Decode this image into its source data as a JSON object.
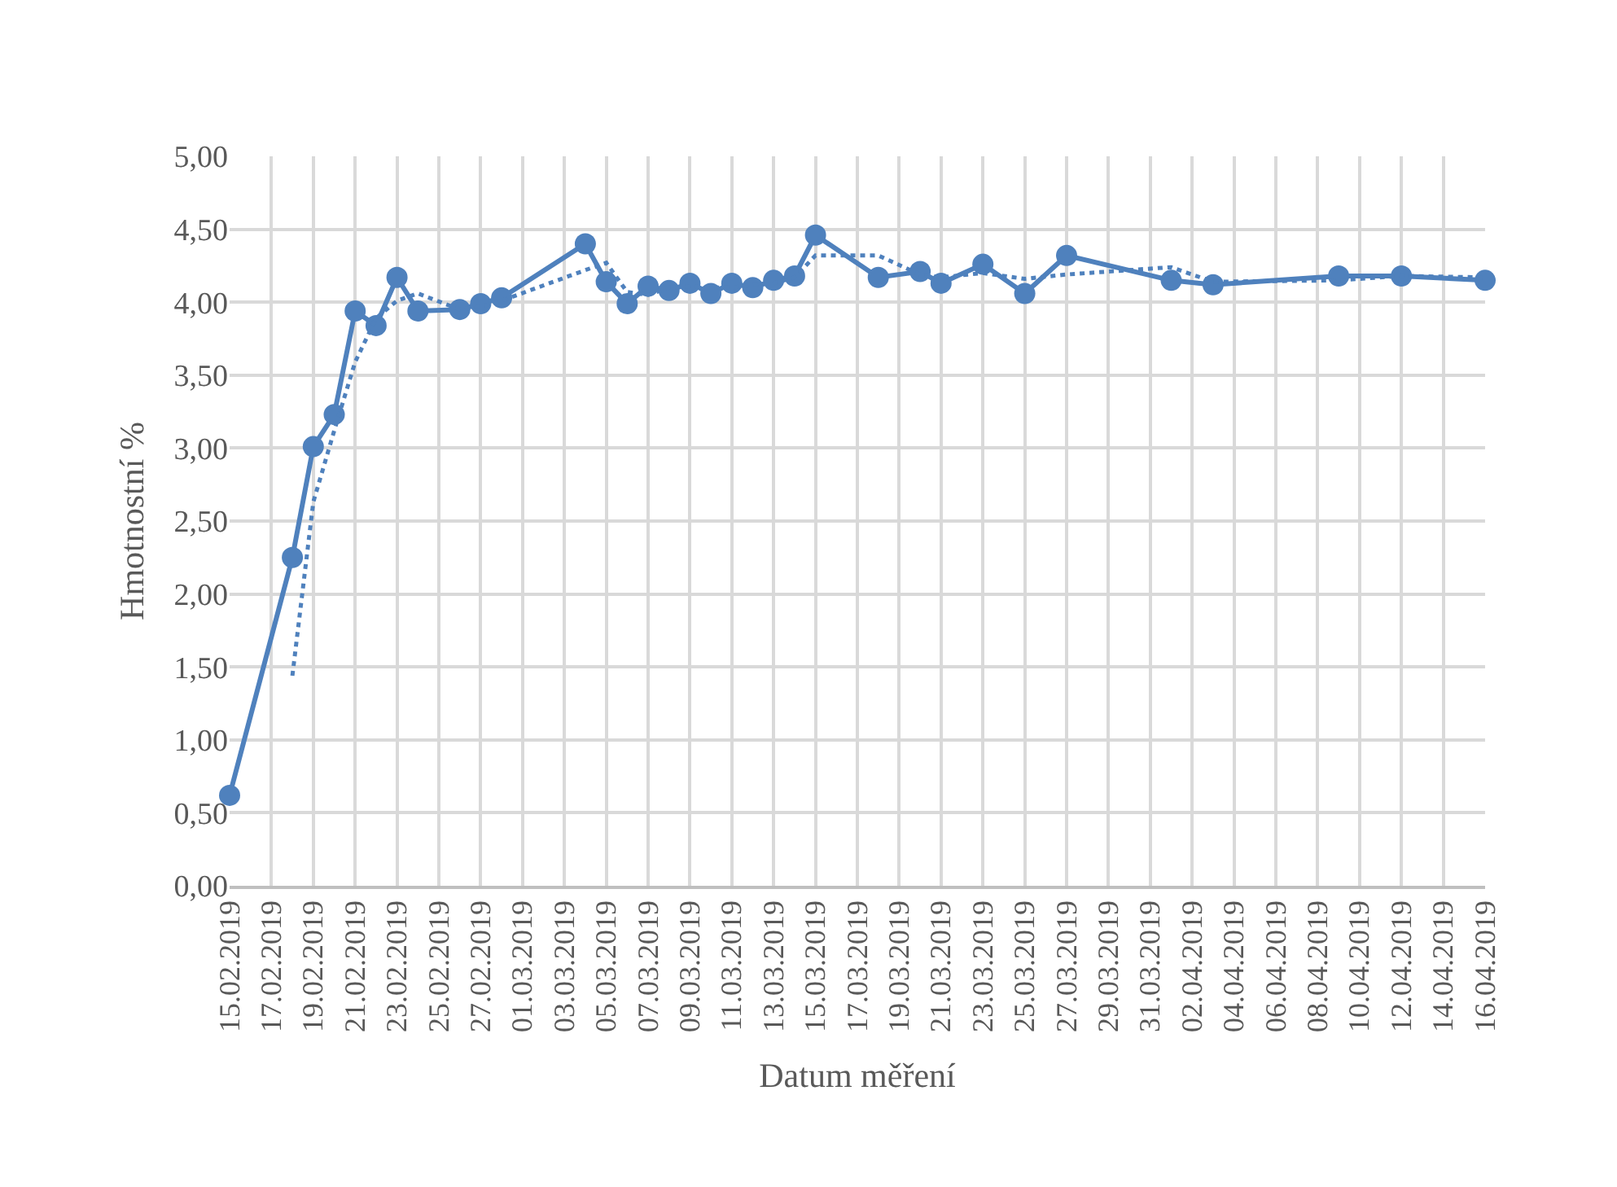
{
  "chart_data": {
    "type": "line",
    "xlabel": "Datum měření",
    "ylabel": "Hmotnostní %",
    "grid": true,
    "xlim": [
      "2019-02-15",
      "2019-04-16"
    ],
    "xticks": [
      {
        "value": "2019-02-15",
        "label": "15.02.2019"
      },
      {
        "value": "2019-02-17",
        "label": "17.02.2019"
      },
      {
        "value": "2019-02-19",
        "label": "19.02.2019"
      },
      {
        "value": "2019-02-21",
        "label": "21.02.2019"
      },
      {
        "value": "2019-02-23",
        "label": "23.02.2019"
      },
      {
        "value": "2019-02-25",
        "label": "25.02.2019"
      },
      {
        "value": "2019-02-27",
        "label": "27.02.2019"
      },
      {
        "value": "2019-03-01",
        "label": "01.03.2019"
      },
      {
        "value": "2019-03-03",
        "label": "03.03.2019"
      },
      {
        "value": "2019-03-05",
        "label": "05.03.2019"
      },
      {
        "value": "2019-03-07",
        "label": "07.03.2019"
      },
      {
        "value": "2019-03-09",
        "label": "09.03.2019"
      },
      {
        "value": "2019-03-11",
        "label": "11.03.2019"
      },
      {
        "value": "2019-03-13",
        "label": "13.03.2019"
      },
      {
        "value": "2019-03-15",
        "label": "15.03.2019"
      },
      {
        "value": "2019-03-17",
        "label": "17.03.2019"
      },
      {
        "value": "2019-03-19",
        "label": "19.03.2019"
      },
      {
        "value": "2019-03-21",
        "label": "21.03.2019"
      },
      {
        "value": "2019-03-23",
        "label": "23.03.2019"
      },
      {
        "value": "2019-03-25",
        "label": "25.03.2019"
      },
      {
        "value": "2019-03-27",
        "label": "27.03.2019"
      },
      {
        "value": "2019-03-29",
        "label": "29.03.2019"
      },
      {
        "value": "2019-03-31",
        "label": "31.03.2019"
      },
      {
        "value": "2019-04-02",
        "label": "02.04.2019"
      },
      {
        "value": "2019-04-04",
        "label": "04.04.2019"
      },
      {
        "value": "2019-04-06",
        "label": "06.04.2019"
      },
      {
        "value": "2019-04-08",
        "label": "08.04.2019"
      },
      {
        "value": "2019-04-10",
        "label": "10.04.2019"
      },
      {
        "value": "2019-04-12",
        "label": "12.04.2019"
      },
      {
        "value": "2019-04-14",
        "label": "14.04.2019"
      },
      {
        "value": "2019-04-16",
        "label": "16.04.2019"
      }
    ],
    "ylim": [
      0,
      5
    ],
    "yticks": [
      {
        "value": 0,
        "label": "0,00"
      },
      {
        "value": 0.5,
        "label": "0,50"
      },
      {
        "value": 1,
        "label": "1,00"
      },
      {
        "value": 1.5,
        "label": "1,50"
      },
      {
        "value": 2,
        "label": "2,00"
      },
      {
        "value": 2.5,
        "label": "2,50"
      },
      {
        "value": 3,
        "label": "3,00"
      },
      {
        "value": 3.5,
        "label": "3,50"
      },
      {
        "value": 4,
        "label": "4,00"
      },
      {
        "value": 4.5,
        "label": "4,50"
      },
      {
        "value": 5,
        "label": "5,00"
      }
    ],
    "series": [
      {
        "color": "#4f81bd",
        "marker": "circle",
        "line_style": "solid",
        "x": [
          "2019-02-15",
          "2019-02-18",
          "2019-02-19",
          "2019-02-20",
          "2019-02-21",
          "2019-02-22",
          "2019-02-23",
          "2019-02-24",
          "2019-02-26",
          "2019-02-27",
          "2019-02-28",
          "2019-03-04",
          "2019-03-05",
          "2019-03-06",
          "2019-03-07",
          "2019-03-08",
          "2019-03-09",
          "2019-03-10",
          "2019-03-11",
          "2019-03-12",
          "2019-03-13",
          "2019-03-14",
          "2019-03-15",
          "2019-03-18",
          "2019-03-20",
          "2019-03-21",
          "2019-03-23",
          "2019-03-25",
          "2019-03-27",
          "2019-04-01",
          "2019-04-03",
          "2019-04-09",
          "2019-04-12",
          "2019-04-16"
        ],
        "values": [
          0.62,
          2.25,
          3.01,
          3.23,
          3.94,
          3.84,
          4.17,
          3.94,
          3.95,
          3.99,
          4.03,
          4.4,
          4.14,
          3.99,
          4.11,
          4.08,
          4.13,
          4.06,
          4.13,
          4.1,
          4.15,
          4.18,
          4.46,
          4.17,
          4.21,
          4.13,
          4.26,
          4.06,
          4.32,
          4.15,
          4.12,
          4.18,
          4.18,
          4.15
        ]
      },
      {
        "color": "#4f81bd",
        "marker": "none",
        "line_style": "dotted",
        "x": [
          "2019-02-18",
          "2019-02-19",
          "2019-02-20",
          "2019-02-21",
          "2019-02-22",
          "2019-02-23",
          "2019-02-24",
          "2019-02-26",
          "2019-02-27",
          "2019-02-28",
          "2019-03-04",
          "2019-03-05",
          "2019-03-06",
          "2019-03-07",
          "2019-03-08",
          "2019-03-09",
          "2019-03-10",
          "2019-03-11",
          "2019-03-12",
          "2019-03-13",
          "2019-03-14",
          "2019-03-15",
          "2019-03-18",
          "2019-03-20",
          "2019-03-21",
          "2019-03-23",
          "2019-03-25",
          "2019-03-27",
          "2019-04-01",
          "2019-04-03",
          "2019-04-09",
          "2019-04-12",
          "2019-04-16"
        ],
        "values": [
          1.44,
          2.63,
          3.12,
          3.59,
          3.89,
          4.01,
          4.06,
          3.95,
          3.97,
          4.01,
          4.22,
          4.27,
          4.07,
          4.05,
          4.1,
          4.11,
          4.1,
          4.1,
          4.12,
          4.13,
          4.17,
          4.32,
          4.32,
          4.19,
          4.17,
          4.2,
          4.16,
          4.19,
          4.24,
          4.14,
          4.15,
          4.18,
          4.17
        ]
      }
    ]
  }
}
